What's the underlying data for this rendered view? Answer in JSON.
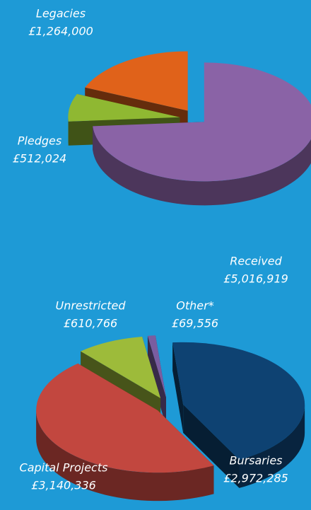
{
  "chart_data": [
    {
      "type": "pie3d",
      "categories": [
        "Received",
        "Pledges",
        "Legacies"
      ],
      "values": [
        5016919,
        512024,
        1264000
      ],
      "value_labels": [
        "£5,016,919",
        "£512,024",
        "£1,264,000"
      ],
      "colors": [
        "#8a63a6",
        "#8fb832",
        "#e0621a"
      ]
    },
    {
      "type": "pie3d",
      "categories": [
        "Bursaries",
        "Capital Projects",
        "Unrestricted",
        "Other*"
      ],
      "values": [
        2972285,
        3140336,
        610766,
        69556
      ],
      "value_labels": [
        "£2,972,285",
        "£3,140,336",
        "£610,766",
        "£69,556"
      ],
      "colors": [
        "#0e4272",
        "#c2473f",
        "#9dbb3a",
        "#7a5da0"
      ]
    }
  ]
}
